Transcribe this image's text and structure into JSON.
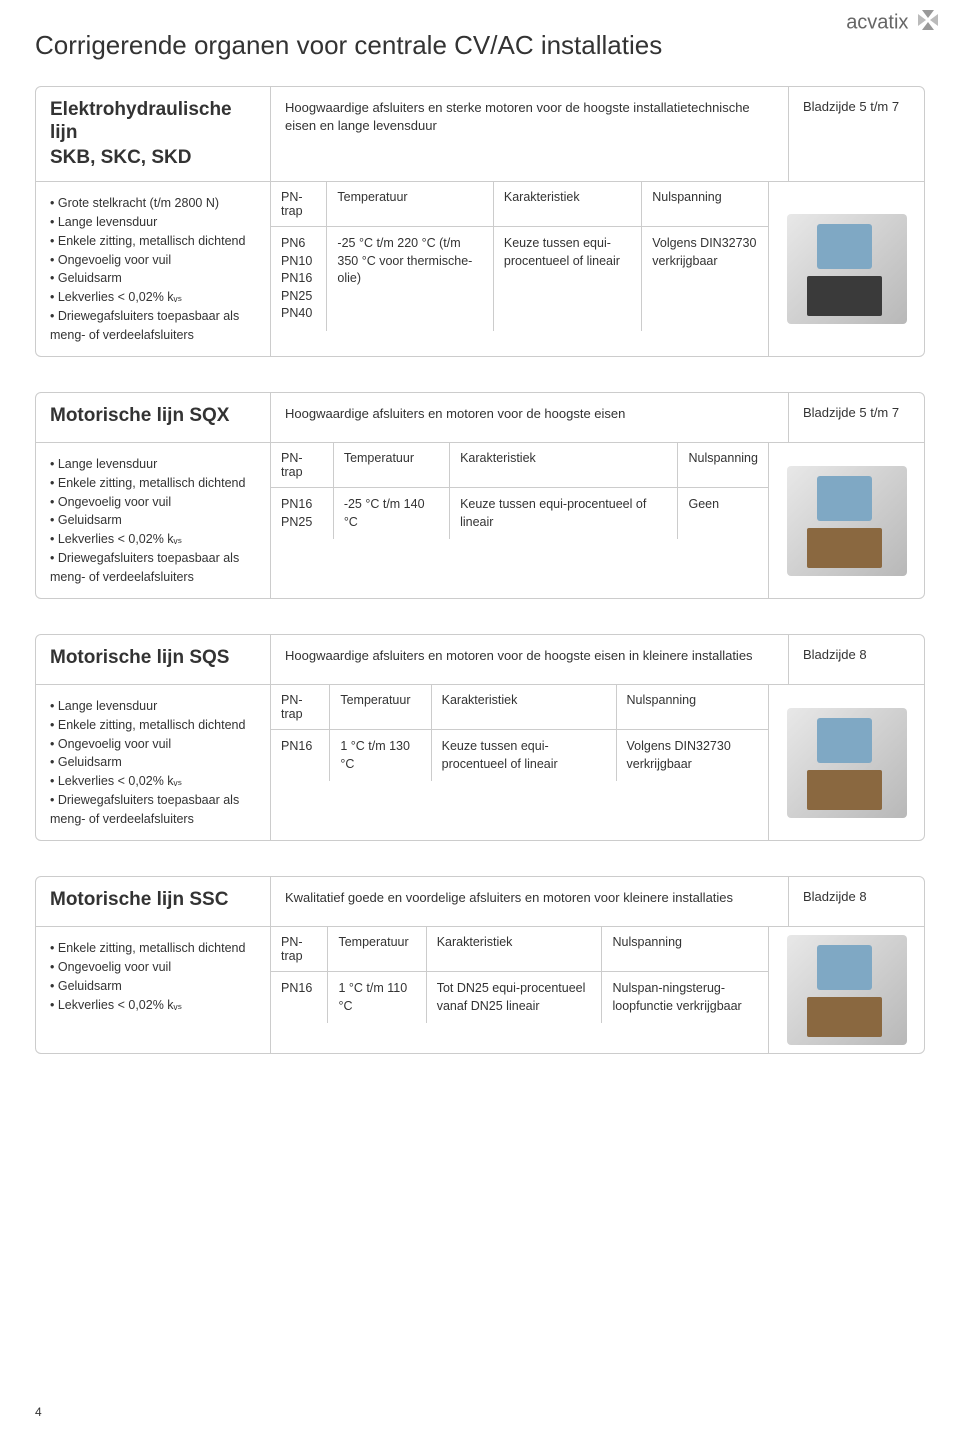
{
  "logo": "acvatix",
  "page_title": "Corrigerende organen voor centrale CV/AC installaties",
  "page_number": "4",
  "sections": [
    {
      "title": "Elektrohydraulische lijn",
      "subtitle": "SKB, SKC, SKD",
      "description": "Hoogwaardige afsluiters en sterke motoren voor de hoogste installatietechnische eisen en lange levensduur",
      "page_ref": "Bladzijde 5 t/m 7",
      "features": [
        "Grote stelkracht (t/m 2800 N)",
        "Lange levensduur",
        "Enkele zitting, metallisch dichtend",
        "Ongevoelig voor vuil",
        "Geluidsarm",
        "Lekverlies < 0,02% kᵥₛ",
        "Driewegafsluiters toepasbaar als meng- of verdeelafsluiters"
      ],
      "spec_headers": [
        "PN-trap",
        "Temperatuur",
        "Karakteristiek",
        "Nulspanning"
      ],
      "spec_values": [
        "PN6\nPN10\nPN16\nPN25\nPN40",
        "-25 °C t/m 220 °C (t/m 350 °C voor thermische-olie)",
        "Keuze tussen equi-procentueel of lineair",
        "Volgens DIN32730 verkrijgbaar"
      ],
      "product_style": "dark"
    },
    {
      "title": "Motorische lijn SQX",
      "subtitle": "",
      "description": "Hoogwaardige afsluiters en motoren voor de hoogste eisen",
      "page_ref": "Bladzijde 5 t/m 7",
      "features": [
        "Lange levensduur",
        "Enkele zitting, metallisch dichtend",
        "Ongevoelig voor vuil",
        "Geluidsarm",
        "Lekverlies < 0,02% kᵥₛ",
        "Driewegafsluiters toepasbaar als meng- of verdeelafsluiters"
      ],
      "spec_headers": [
        "PN-trap",
        "Temperatuur",
        "Karakteristiek",
        "Nulspanning"
      ],
      "spec_values": [
        "PN16\nPN25",
        "-25 °C t/m 140 °C",
        "Keuze tussen equi-procentueel of lineair",
        "Geen"
      ],
      "product_style": "bronze"
    },
    {
      "title": "Motorische lijn SQS",
      "subtitle": "",
      "description": "Hoogwaardige afsluiters en motoren voor de hoogste eisen in kleinere installaties",
      "page_ref": "Bladzijde 8",
      "features": [
        "Lange levensduur",
        "Enkele zitting, metallisch dichtend",
        "Ongevoelig voor vuil",
        "Geluidsarm",
        "Lekverlies < 0,02% kᵥₛ",
        "Driewegafsluiters toepasbaar als meng- of verdeelafsluiters"
      ],
      "spec_headers": [
        "PN-trap",
        "Temperatuur",
        "Karakteristiek",
        "Nulspanning"
      ],
      "spec_values": [
        "PN16",
        "1 °C t/m 130 °C",
        "Keuze tussen equi-procentueel of lineair",
        "Volgens DIN32730 verkrijgbaar"
      ],
      "product_style": "bronze"
    },
    {
      "title": "Motorische lijn SSC",
      "subtitle": "",
      "description": "Kwalitatief goede en voordelige afsluiters en motoren voor kleinere installaties",
      "page_ref": "Bladzijde 8",
      "features": [
        "Enkele zitting, metallisch dichtend",
        "Ongevoelig voor vuil",
        "Geluidsarm",
        "Lekverlies < 0,02% kᵥₛ"
      ],
      "spec_headers": [
        "PN-trap",
        "Temperatuur",
        "Karakteristiek",
        "Nulspanning"
      ],
      "spec_values": [
        "PN16",
        "1 °C t/m 110 °C",
        "Tot DN25 equi-procentueel vanaf DN25 lineair",
        "Nulspan-ningsterug-loopfunctie verkrijgbaar"
      ],
      "product_style": "bronze"
    }
  ]
}
